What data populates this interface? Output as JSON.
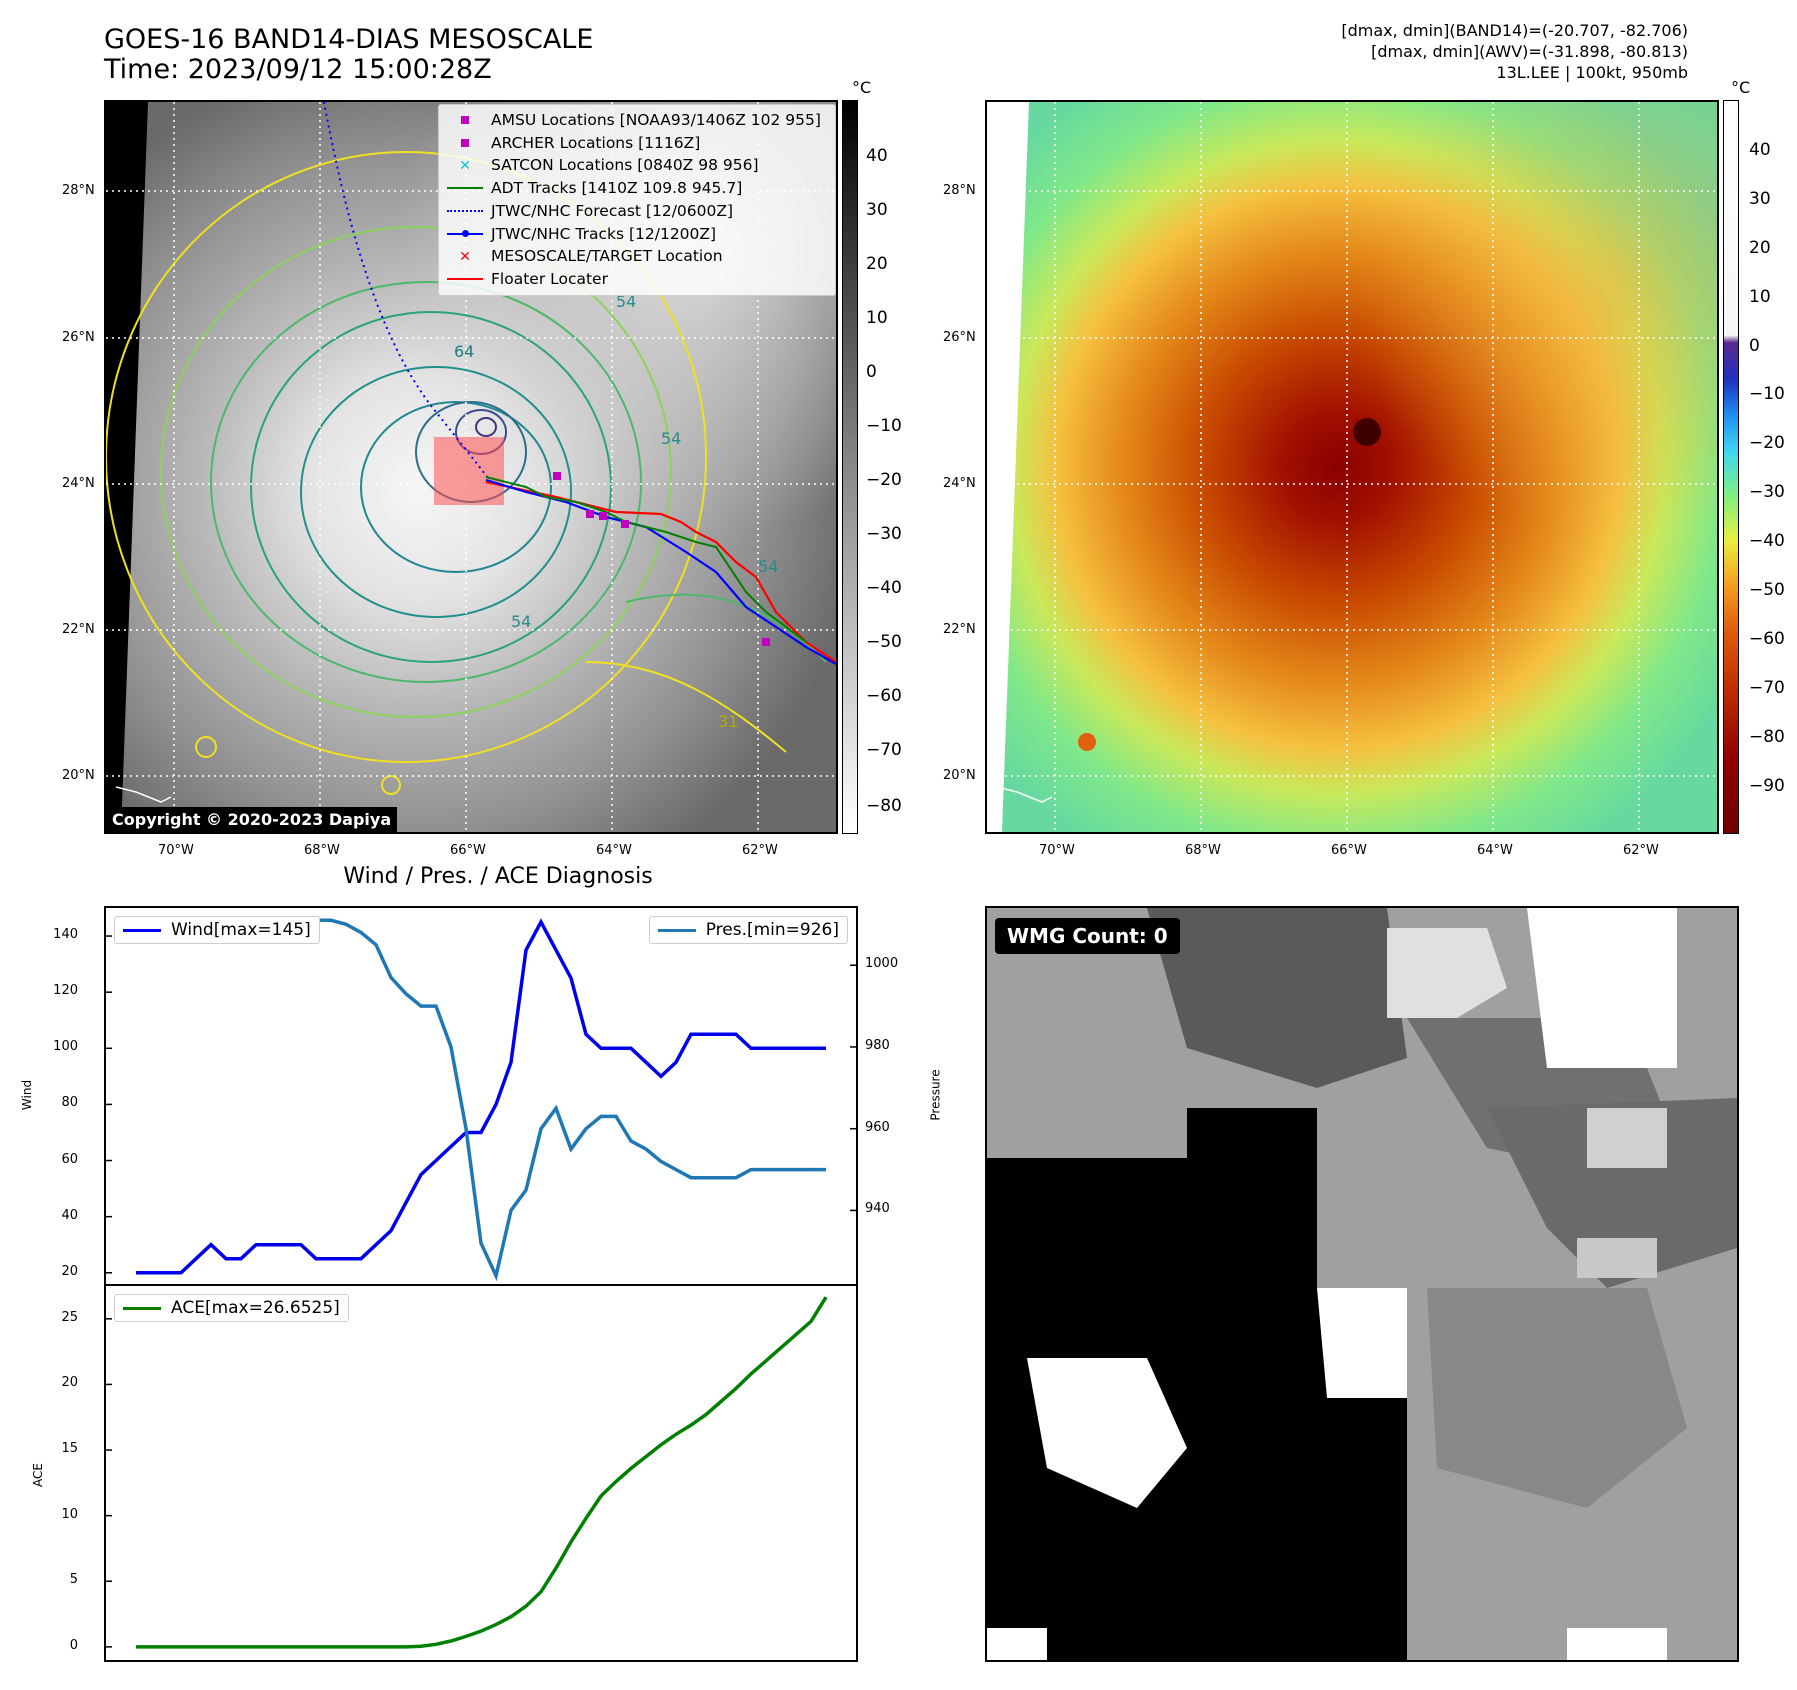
{
  "header": {
    "title_line1": "GOES-16 BAND14-DIAS MESOSCALE",
    "title_line2": "Time: 2023/09/12 15:00:28Z",
    "right_line1": "[dmax, dmin](BAND14)=(-20.707, -82.706)",
    "right_line2": "[dmax, dmin](AWV)=(-31.898, -80.813)",
    "right_line3": "13L.LEE | 100kt, 950mb"
  },
  "map": {
    "lat_labels": [
      "28°N",
      "26°N",
      "24°N",
      "22°N",
      "20°N"
    ],
    "lon_labels": [
      "70°W",
      "68°W",
      "66°W",
      "64°W",
      "62°W"
    ],
    "copyright": "Copyright © 2020-2023 Dapiya",
    "contour_labels": [
      "54",
      "64",
      "54",
      "54",
      "54",
      "31"
    ],
    "legend": [
      {
        "label": "AMSU Locations [NOAA93/1406Z 102 955]",
        "marker": "square",
        "color": "#c000c0"
      },
      {
        "label": "ARCHER Locations [1116Z]",
        "marker": "square",
        "color": "#c000c0"
      },
      {
        "label": "SATCON Locations [0840Z 98 956]",
        "marker": "x",
        "color": "#17becf"
      },
      {
        "label": "ADT Tracks [1410Z 109.8 945.7]",
        "marker": "line",
        "color": "#008000"
      },
      {
        "label": "JTWC/NHC Forecast [12/0600Z]",
        "marker": "dotted",
        "color": "#0000ff"
      },
      {
        "label": "JTWC/NHC Tracks [12/1200Z]",
        "marker": "line-dot",
        "color": "#0000ff"
      },
      {
        "label": "MESOSCALE/TARGET Location",
        "marker": "x",
        "color": "#ff0000"
      },
      {
        "label": "Floater Locater",
        "marker": "line",
        "color": "#ff0000"
      }
    ]
  },
  "colorbars": {
    "unit": "°C",
    "gray_ticks": [
      "40",
      "30",
      "20",
      "10",
      "0",
      "−10",
      "−20",
      "−30",
      "−40",
      "−50",
      "−60",
      "−70",
      "−80"
    ],
    "color_ticks": [
      "40",
      "30",
      "20",
      "10",
      "0",
      "−10",
      "−20",
      "−30",
      "−40",
      "−50",
      "−60",
      "−70",
      "−80",
      "−90"
    ]
  },
  "wmg": {
    "label": "WMG Count: 0"
  },
  "chart_data": [
    {
      "type": "line",
      "title": "Wind / Pres. / ACE Diagnosis",
      "ylabel": "Wind",
      "ylabel_right": "Pressure",
      "ylim": [
        16,
        150
      ],
      "ylim_right": [
        922,
        1014
      ],
      "yticks": [
        20,
        40,
        60,
        80,
        100,
        120,
        140
      ],
      "yticks_right": [
        940,
        960,
        980,
        1000
      ],
      "x": [
        0,
        1,
        2,
        3,
        4,
        5,
        6,
        7,
        8,
        9,
        10,
        11,
        12,
        13,
        14,
        15,
        16,
        17,
        18,
        19,
        20,
        21,
        22,
        23,
        24,
        25,
        26,
        27,
        28,
        29,
        30,
        31,
        32,
        33,
        34,
        35,
        36,
        37,
        38,
        39,
        40,
        41,
        42,
        43,
        44,
        45,
        46
      ],
      "series": [
        {
          "name": "Wind[max=145]",
          "color": "#0000ee",
          "values": [
            20,
            20,
            20,
            20,
            25,
            30,
            25,
            25,
            30,
            30,
            30,
            30,
            25,
            25,
            25,
            25,
            30,
            35,
            45,
            55,
            60,
            65,
            70,
            70,
            80,
            95,
            135,
            145,
            135,
            125,
            105,
            100,
            100,
            100,
            95,
            90,
            95,
            105,
            105,
            105,
            105,
            100,
            100,
            100,
            100,
            100,
            100
          ]
        },
        {
          "name": "Pres.[min=926]",
          "color": "#1f77b4",
          "values": [
            1011,
            1011,
            1011,
            1011,
            1010,
            1010,
            1010,
            1010,
            1011,
            1011,
            1011,
            1011,
            1011,
            1011,
            1010,
            1008,
            1005,
            997,
            993,
            990,
            990,
            980,
            960,
            932,
            924,
            940,
            945,
            960,
            965,
            955,
            960,
            963,
            963,
            957,
            955,
            952,
            950,
            948,
            948,
            948,
            948,
            950,
            950,
            950,
            950,
            950,
            950
          ]
        }
      ]
    },
    {
      "type": "line",
      "ylabel": "ACE",
      "ylim": [
        -1,
        27.5
      ],
      "yticks": [
        0,
        5,
        10,
        15,
        20,
        25
      ],
      "series": [
        {
          "name": "ACE[max=26.6525]",
          "color": "#008000",
          "values": [
            0,
            0,
            0,
            0,
            0,
            0,
            0,
            0,
            0,
            0,
            0,
            0,
            0,
            0,
            0,
            0,
            0,
            0,
            0,
            0.05,
            0.2,
            0.45,
            0.8,
            1.2,
            1.7,
            2.3,
            3.1,
            4.2,
            6.0,
            8.0,
            9.8,
            11.5,
            12.6,
            13.6,
            14.5,
            15.4,
            16.2,
            16.9,
            17.7,
            18.7,
            19.7,
            20.8,
            21.8,
            22.8,
            23.8,
            24.8,
            26.65
          ]
        }
      ]
    }
  ]
}
